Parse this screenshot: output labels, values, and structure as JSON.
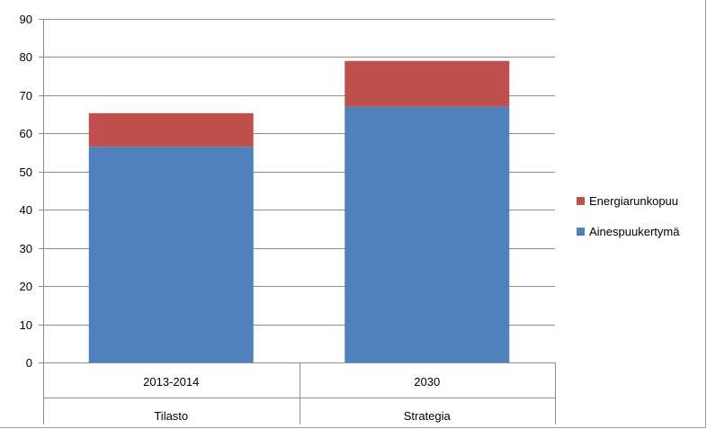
{
  "chart_data": {
    "type": "bar",
    "stacked": true,
    "categories": [
      "2013-2014",
      "2030"
    ],
    "category_groups": [
      "Tilasto",
      "Strategia"
    ],
    "series": [
      {
        "name": "Ainespuukertymä",
        "values": [
          56.5,
          67
        ],
        "color": "#4f81bd"
      },
      {
        "name": "Energiarunkopuu",
        "values": [
          8.8,
          12
        ],
        "color": "#c0504d"
      }
    ],
    "ylim": [
      0,
      90
    ],
    "yticks": [
      "0",
      "10",
      "20",
      "30",
      "40",
      "50",
      "60",
      "70",
      "80",
      "90"
    ],
    "grid": true,
    "legend": "right"
  }
}
